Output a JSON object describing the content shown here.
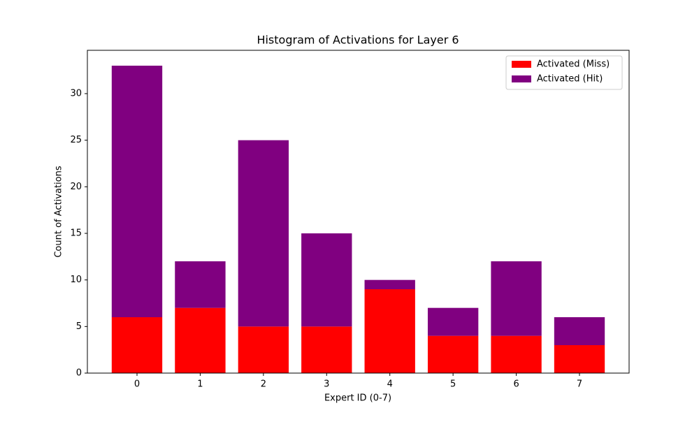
{
  "chart_data": {
    "type": "stacked_bar",
    "title": "Histogram of Activations for Layer 6",
    "x_label": "Expert ID (0-7)",
    "y_label": "Count of Activations",
    "categories": [
      "0",
      "1",
      "2",
      "3",
      "4",
      "5",
      "6",
      "7"
    ],
    "series": [
      {
        "name": "Activated (Miss)",
        "color": "#ff0000",
        "values": [
          6,
          7,
          5,
          5,
          9,
          4,
          4,
          3
        ]
      },
      {
        "name": "Activated (Hit)",
        "color": "#800080",
        "values": [
          27,
          5,
          20,
          10,
          1,
          3,
          8,
          3
        ]
      }
    ],
    "ylim": [
      0,
      34.65
    ],
    "yticks": [
      0,
      5,
      10,
      15,
      20,
      25,
      30
    ],
    "legend": "upper right"
  }
}
